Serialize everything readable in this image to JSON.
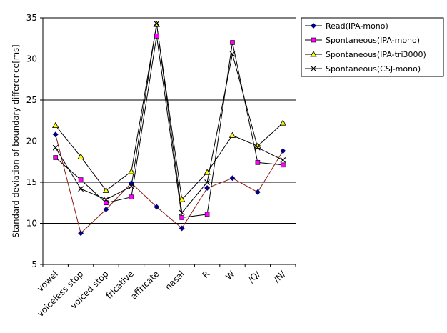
{
  "chart_data": {
    "type": "line",
    "title": "",
    "xlabel": "",
    "ylabel": "Standard deviation of boundary difference[ms]",
    "ylim": [
      5,
      35
    ],
    "ytick_step": 5,
    "grid": "horizontal",
    "legend_position": "top-right",
    "categories": [
      "vowel",
      "voiceless stop",
      "voiced stop",
      "fricative",
      "affricate",
      "nasal",
      "R",
      "W",
      "/Q/",
      "/N/"
    ],
    "series": [
      {
        "name": "Read(IPA-mono)",
        "color": "#000080",
        "marker": "diamond",
        "marker_fill": "#000080",
        "line": "#8b1a1a",
        "values": [
          20.8,
          8.8,
          11.7,
          14.9,
          12.0,
          9.4,
          14.3,
          15.5,
          13.8,
          18.8
        ]
      },
      {
        "name": "Spontaneous(IPA-mono)",
        "color": "#ff00ff",
        "marker": "square",
        "marker_fill": "#ff00ff",
        "line": "#000000",
        "values": [
          18.0,
          15.3,
          12.5,
          13.2,
          32.8,
          10.7,
          11.1,
          32.0,
          17.4,
          17.1
        ]
      },
      {
        "name": "Spontaneous(IPA-tri3000)",
        "color": "#ffff00",
        "marker": "triangle",
        "marker_fill": "#ffff00",
        "line": "#000000",
        "values": [
          21.9,
          18.1,
          14.0,
          16.3,
          34.2,
          12.9,
          16.2,
          20.7,
          19.4,
          22.2
        ]
      },
      {
        "name": "Spontaneous(CSJ-mono)",
        "color": "#000000",
        "marker": "x",
        "marker_fill": "none",
        "line": "#000000",
        "values": [
          19.2,
          14.2,
          12.9,
          14.5,
          34.3,
          11.3,
          15.0,
          30.6,
          19.2,
          17.7
        ]
      }
    ]
  }
}
